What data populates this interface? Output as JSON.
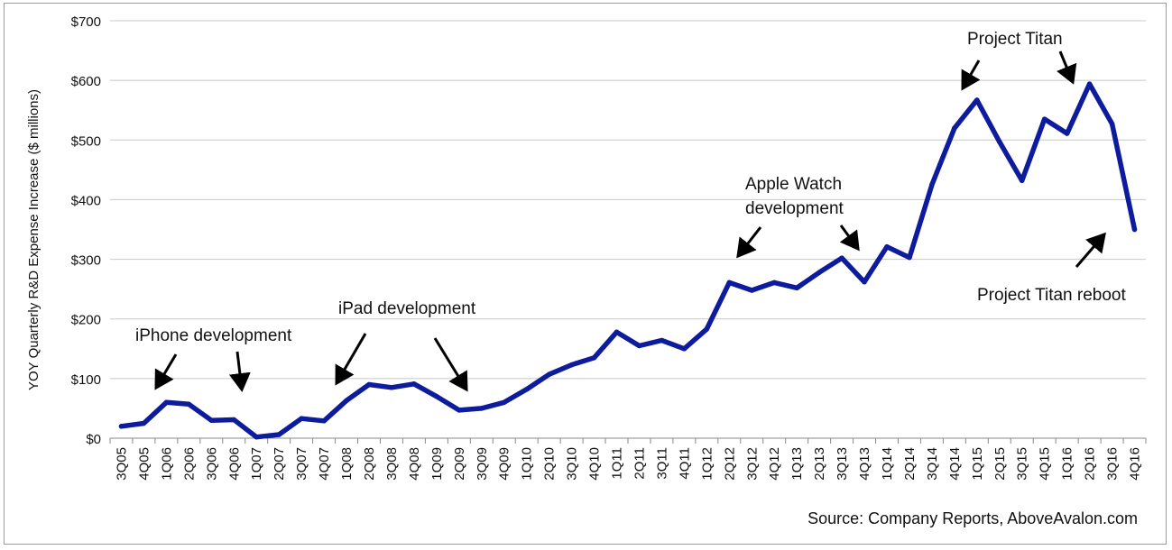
{
  "chart_data": {
    "type": "line",
    "title": "",
    "xlabel": "",
    "ylabel": "YOY Quarterly R&D Expense Increase ($ millions)",
    "ylim": [
      0,
      700
    ],
    "yticks": [
      "$0",
      "$100",
      "$200",
      "$300",
      "$400",
      "$500",
      "$600",
      "$700"
    ],
    "grid": true,
    "legend": "none",
    "source": "Source: Company Reports, AboveAvalon.com",
    "line_color": "#0d1c9c",
    "categories": [
      "3Q05",
      "4Q05",
      "1Q06",
      "2Q06",
      "3Q06",
      "4Q06",
      "1Q07",
      "2Q07",
      "3Q07",
      "4Q07",
      "1Q08",
      "2Q08",
      "3Q08",
      "4Q08",
      "1Q09",
      "2Q09",
      "3Q09",
      "4Q09",
      "1Q10",
      "2Q10",
      "3Q10",
      "4Q10",
      "1Q11",
      "2Q11",
      "3Q11",
      "4Q11",
      "1Q12",
      "2Q12",
      "3Q12",
      "4Q12",
      "1Q13",
      "2Q13",
      "3Q13",
      "4Q13",
      "1Q14",
      "2Q14",
      "3Q14",
      "4Q14",
      "1Q15",
      "2Q15",
      "3Q15",
      "4Q15",
      "1Q16",
      "2Q16",
      "3Q16",
      "4Q16"
    ],
    "series": [
      {
        "values": [
          20,
          25,
          60,
          57,
          30,
          31,
          2,
          6,
          33,
          29,
          63,
          90,
          85,
          91,
          70,
          47,
          50,
          60,
          82,
          107,
          123,
          135,
          178,
          155,
          164,
          150,
          183,
          261,
          248,
          261,
          252,
          278,
          302,
          262,
          321,
          303,
          425,
          520,
          567,
          497,
          432,
          535,
          511,
          594,
          527,
          350
        ]
      }
    ],
    "annotations": [
      {
        "text": "iPhone development",
        "anchor": "iPhone"
      },
      {
        "text": "iPad development",
        "anchor": "iPad"
      },
      {
        "text": "Apple Watch",
        "anchor": "watch1"
      },
      {
        "text": "development",
        "anchor": "watch2"
      },
      {
        "text": "Project Titan",
        "anchor": "titan"
      },
      {
        "text": "Project Titan reboot",
        "anchor": "reboot"
      }
    ]
  }
}
